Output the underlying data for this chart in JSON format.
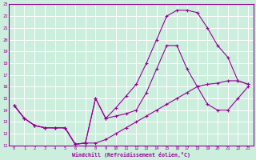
{
  "xlabel": "Windchill (Refroidissement éolien,°C)",
  "background_color": "#cceedd",
  "grid_color": "#ffffff",
  "line_color": "#990099",
  "xlim": [
    -0.5,
    23.5
  ],
  "ylim": [
    11,
    23
  ],
  "xticks": [
    0,
    1,
    2,
    3,
    4,
    5,
    6,
    7,
    8,
    9,
    10,
    11,
    12,
    13,
    14,
    15,
    16,
    17,
    18,
    19,
    20,
    21,
    22,
    23
  ],
  "yticks": [
    11,
    12,
    13,
    14,
    15,
    16,
    17,
    18,
    19,
    20,
    21,
    22,
    23
  ],
  "line1_x": [
    0,
    1,
    2,
    3,
    4,
    5,
    6,
    7,
    8,
    9,
    10,
    11,
    12,
    13,
    14,
    15,
    16,
    17,
    18,
    19,
    20,
    21,
    22,
    23
  ],
  "line1_y": [
    14.4,
    13.3,
    12.7,
    12.5,
    12.5,
    12.5,
    11.1,
    11.2,
    15.0,
    13.3,
    13.5,
    13.7,
    14.0,
    15.5,
    17.5,
    19.5,
    19.5,
    17.5,
    16.0,
    14.5,
    14.0,
    14.0,
    15.0,
    16.0
  ],
  "line2_x": [
    0,
    1,
    2,
    3,
    4,
    5,
    6,
    7,
    8,
    9,
    10,
    11,
    12,
    13,
    14,
    15,
    16,
    17,
    18,
    19,
    20,
    21,
    22,
    23
  ],
  "line2_y": [
    14.4,
    13.3,
    12.7,
    12.5,
    12.5,
    12.5,
    11.1,
    11.2,
    15.0,
    13.3,
    14.2,
    15.2,
    16.2,
    18.0,
    20.0,
    22.0,
    22.5,
    22.5,
    22.3,
    21.0,
    19.5,
    18.5,
    16.5,
    16.2
  ],
  "line3_x": [
    0,
    1,
    2,
    3,
    4,
    5,
    6,
    7,
    8,
    9,
    10,
    11,
    12,
    13,
    14,
    15,
    16,
    17,
    18,
    19,
    20,
    21,
    22,
    23
  ],
  "line3_y": [
    14.4,
    13.3,
    12.7,
    12.5,
    12.5,
    12.5,
    11.1,
    11.2,
    11.2,
    11.5,
    12.0,
    12.5,
    13.0,
    13.5,
    14.0,
    14.5,
    15.0,
    15.5,
    16.0,
    16.2,
    16.3,
    16.5,
    16.5,
    16.2
  ]
}
